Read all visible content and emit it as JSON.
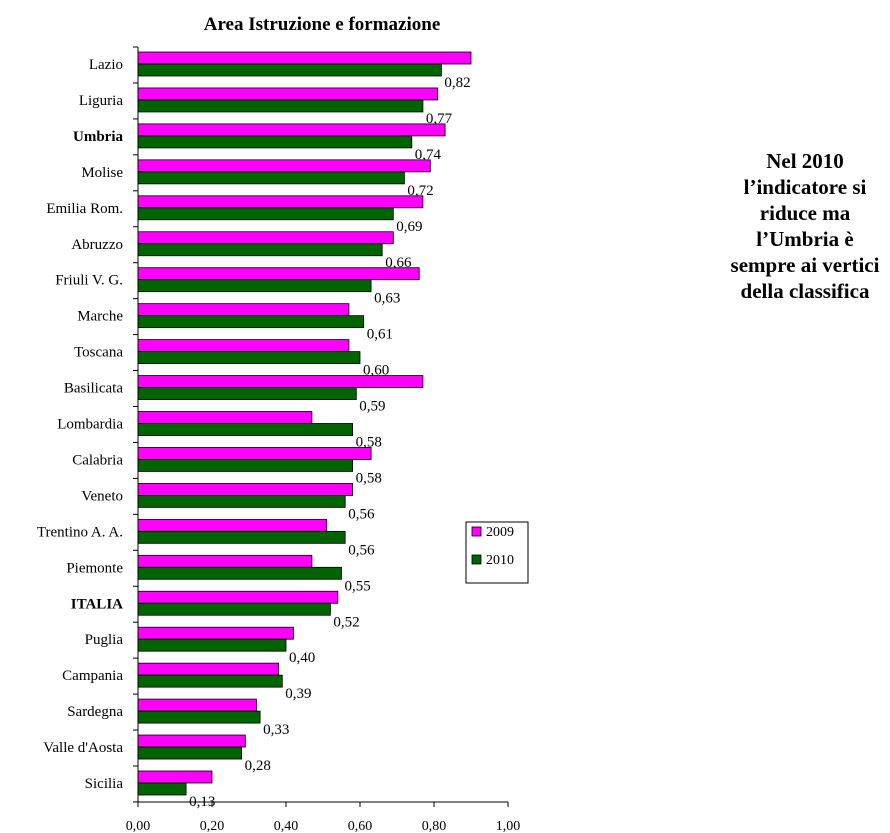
{
  "chart_data": {
    "type": "bar",
    "orientation": "horizontal",
    "title": "Area Istruzione e formazione",
    "categories": [
      "Lazio",
      "Liguria",
      "Umbria",
      "Molise",
      "Emilia Rom.",
      "Abruzzo",
      "Friuli V. G.",
      "Marche",
      "Toscana",
      "Basilicata",
      "Lombardia",
      "Calabria",
      "Veneto",
      "Trentino A. A.",
      "Piemonte",
      "ITALIA",
      "Puglia",
      "Campania",
      "Sardegna",
      "Valle d'Aosta",
      "Sicilia"
    ],
    "bold_categories": [
      "Umbria",
      "ITALIA"
    ],
    "series": [
      {
        "name": "2009",
        "color": "#ff00ff",
        "values": [
          0.9,
          0.81,
          0.83,
          0.79,
          0.77,
          0.69,
          0.76,
          0.57,
          0.57,
          0.77,
          0.47,
          0.63,
          0.58,
          0.51,
          0.47,
          0.54,
          0.42,
          0.38,
          0.32,
          0.29,
          0.2
        ]
      },
      {
        "name": "2010",
        "color": "#006400",
        "values": [
          0.82,
          0.77,
          0.74,
          0.72,
          0.69,
          0.66,
          0.63,
          0.61,
          0.6,
          0.59,
          0.58,
          0.58,
          0.56,
          0.56,
          0.55,
          0.52,
          0.4,
          0.39,
          0.33,
          0.28,
          0.13
        ]
      }
    ],
    "data_labels": [
      "0,82",
      "0,77",
      "0,74",
      "0,72",
      "0,69",
      "0,66",
      "0,63",
      "0,61",
      "0,60",
      "0,59",
      "0,58",
      "0,58",
      "0,56",
      "0,56",
      "0,55",
      "0,52",
      "0,40",
      "0,39",
      "0,33",
      "0,28",
      "0,13"
    ],
    "xlim": [
      0,
      1
    ],
    "x_ticks": [
      "0,00",
      "0,20",
      "0,40",
      "0,60",
      "0,80",
      "1,00"
    ],
    "grid": false,
    "legend_position": "right"
  },
  "annotation": {
    "lines": [
      "Nel 2010",
      "l’indicatore si",
      "riduce ma",
      "l’Umbria è",
      "sempre ai vertici",
      "della classifica"
    ]
  }
}
